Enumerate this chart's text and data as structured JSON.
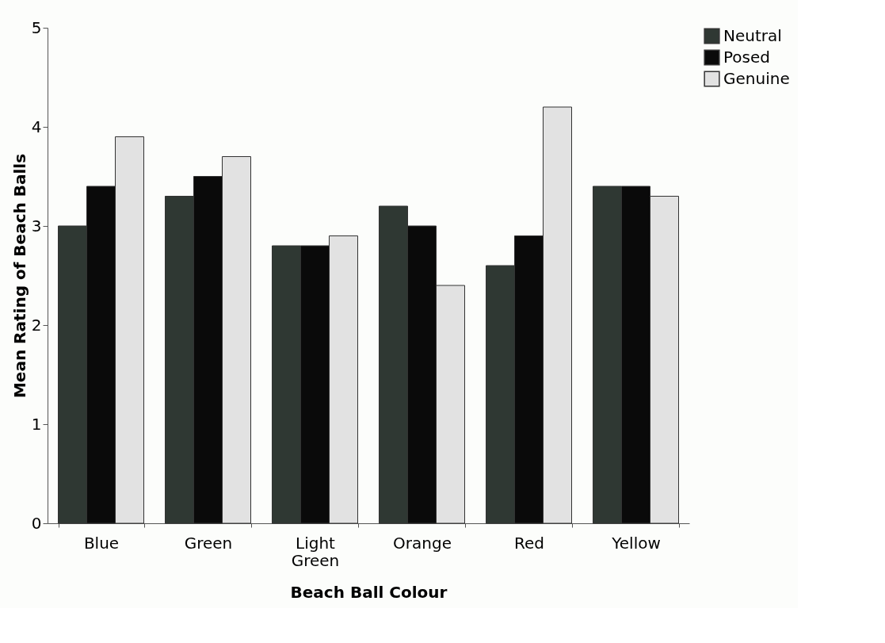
{
  "chart_data": {
    "type": "bar",
    "xlabel": "Beach Ball Colour",
    "ylabel": "Mean Rating of Beach Balls",
    "categories": [
      "Blue",
      "Green",
      "Light Green",
      "Orange",
      "Red",
      "Yellow"
    ],
    "series": [
      {
        "name": "Neutral",
        "color": "#2f3833",
        "values": [
          3.0,
          3.3,
          2.8,
          3.2,
          2.6,
          3.4
        ]
      },
      {
        "name": "Posed",
        "color": "#0a0a0a",
        "values": [
          3.4,
          3.5,
          2.8,
          3.0,
          2.9,
          3.4
        ]
      },
      {
        "name": "Genuine",
        "color": "#e2e2e2",
        "values": [
          3.9,
          3.7,
          2.9,
          2.4,
          4.2,
          3.3
        ]
      }
    ],
    "ylim": [
      0,
      5
    ],
    "yticks": [
      0,
      1,
      2,
      3,
      4,
      5
    ],
    "grid": false,
    "legend": "right"
  }
}
